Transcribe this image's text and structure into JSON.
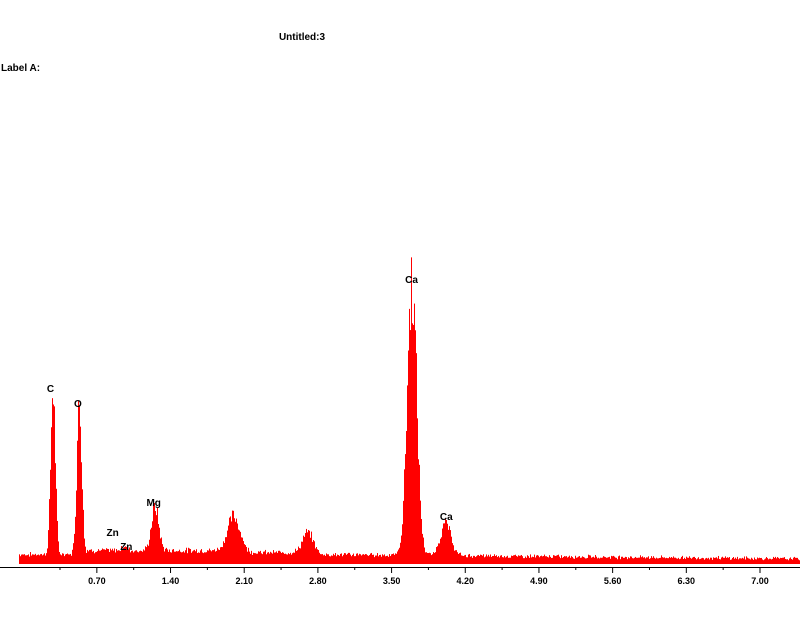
{
  "title": "Untitled:3",
  "label_a": "Label A:",
  "colors": {
    "spectrum": "#ff0000",
    "axis": "#000000",
    "text": "#000000",
    "background": "#ffffff"
  },
  "chart_data": {
    "type": "area",
    "title": "Untitled:3",
    "xlabel": "",
    "ylabel": "",
    "xlim": [
      -0.22,
      7.38
    ],
    "ylim": [
      0,
      285
    ],
    "x_ticks": [
      0.7,
      1.4,
      2.1,
      2.8,
      3.5,
      4.2,
      4.9,
      5.6,
      6.3,
      7.0
    ],
    "x_tick_labels": [
      "0.70",
      "1.40",
      "2.10",
      "2.80",
      "3.50",
      "4.20",
      "4.90",
      "5.60",
      "6.30",
      "7.00"
    ],
    "grid": false,
    "legend": "none",
    "background_level": 8,
    "peaks": [
      {
        "label": "C",
        "x": 0.28,
        "height": 165,
        "width": 0.022
      },
      {
        "label": "O",
        "x": 0.53,
        "height": 150,
        "width": 0.024
      },
      {
        "label": "Zn",
        "x": 0.96,
        "height": 4,
        "width": 0.03
      },
      {
        "label": "Mg",
        "x": 1.25,
        "height": 43,
        "width": 0.035
      },
      {
        "label": "",
        "x": 2.0,
        "height": 35,
        "width": 0.06
      },
      {
        "label": "",
        "x": 2.7,
        "height": 20,
        "width": 0.05
      },
      {
        "label": "Ca",
        "x": 3.69,
        "height": 272,
        "width": 0.045
      },
      {
        "label": "Ca",
        "x": 4.01,
        "height": 32,
        "width": 0.05
      }
    ],
    "annotations": [
      {
        "text": "C",
        "x": 0.26,
        "y": 172
      },
      {
        "text": "O",
        "x": 0.52,
        "y": 157
      },
      {
        "text": "Zn",
        "x": 0.85,
        "y": 28
      },
      {
        "text": "Zn",
        "x": 0.98,
        "y": 14
      },
      {
        "text": "Mg",
        "x": 1.24,
        "y": 58
      },
      {
        "text": "Ca",
        "x": 3.69,
        "y": 281
      },
      {
        "text": "Ca",
        "x": 4.02,
        "y": 44
      }
    ]
  }
}
